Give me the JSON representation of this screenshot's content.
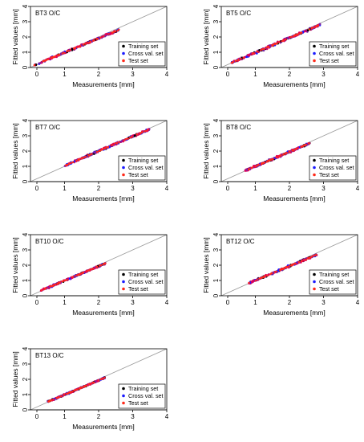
{
  "colors": {
    "training": "#000000",
    "cross_val": "#1a1aff",
    "test": "#ff2a1a",
    "dots_red": "#e0005a",
    "dots_purple": "#7a1fa2",
    "diagonal": "#9a9a9a",
    "axis": "#000000"
  },
  "chart_data": [
    {
      "type": "scatter",
      "title": "BT3 O/C",
      "xlabel": "Measurements [mm]",
      "ylabel": "Fitted values [mm]",
      "xlim": [
        0,
        4
      ],
      "ylim": [
        0,
        4
      ],
      "xticks": [
        "0",
        "1",
        "2",
        "3",
        "4"
      ],
      "yticks": [
        "0",
        "1",
        "2",
        "3",
        "4"
      ],
      "reference_line": "y = x",
      "legend": [
        "Training set",
        "Cross val. set",
        "Test set"
      ],
      "legend_position": "bottom-right",
      "data_range": [
        0.1,
        2.6
      ],
      "slope": 0.93,
      "intercept": 0.05,
      "spread": 0.1
    },
    {
      "type": "scatter",
      "title": "BT5 O/C",
      "xlabel": "Measurements [mm]",
      "ylabel": "Fitted values [mm]",
      "xlim": [
        0,
        4
      ],
      "ylim": [
        0,
        4
      ],
      "xticks": [
        "0",
        "1",
        "2",
        "3",
        "4"
      ],
      "yticks": [
        "0",
        "1",
        "2",
        "3",
        "4"
      ],
      "reference_line": "y = x",
      "legend": [
        "Training set",
        "Cross val. set",
        "Test set"
      ],
      "legend_position": "bottom-right",
      "data_range": [
        0.3,
        2.9
      ],
      "slope": 0.96,
      "intercept": 0.02,
      "spread": 0.11
    },
    {
      "type": "scatter",
      "title": "BT7 O/C",
      "xlabel": "Measurements [mm]",
      "ylabel": "Fitted values [mm]",
      "xlim": [
        0,
        4
      ],
      "ylim": [
        0,
        4
      ],
      "xticks": [
        "0",
        "1",
        "2",
        "3",
        "4"
      ],
      "yticks": [
        "0",
        "1",
        "2",
        "3",
        "4"
      ],
      "reference_line": "y = x",
      "legend": [
        "Training set",
        "Cross val. set",
        "Test set"
      ],
      "legend_position": "bottom-right",
      "data_range": [
        1.0,
        3.5
      ],
      "slope": 0.96,
      "intercept": 0.08,
      "spread": 0.1
    },
    {
      "type": "scatter",
      "title": "BT8 O/C",
      "xlabel": "Measurements [mm]",
      "ylabel": "Fitted values [mm]",
      "xlim": [
        0,
        4
      ],
      "ylim": [
        0,
        4
      ],
      "xticks": [
        "0",
        "1",
        "2",
        "3",
        "4"
      ],
      "yticks": [
        "0",
        "1",
        "2",
        "3",
        "4"
      ],
      "reference_line": "y = x",
      "legend": [
        "Training set",
        "Cross val. set",
        "Test set"
      ],
      "legend_position": "bottom-right",
      "data_range": [
        0.7,
        2.6
      ],
      "slope": 0.95,
      "intercept": 0.05,
      "spread": 0.09
    },
    {
      "type": "scatter",
      "title": "BT10 O/C",
      "xlabel": "Measurements [mm]",
      "ylabel": "Fitted values [mm]",
      "xlim": [
        0,
        4
      ],
      "ylim": [
        0,
        4
      ],
      "xticks": [
        "0",
        "1",
        "2",
        "3",
        "4"
      ],
      "yticks": [
        "0",
        "1",
        "2",
        "3",
        "4"
      ],
      "reference_line": "y = x",
      "legend": [
        "Training set",
        "Cross val. set",
        "Test set"
      ],
      "legend_position": "bottom-right",
      "data_range": [
        0.3,
        2.2
      ],
      "slope": 0.94,
      "intercept": 0.05,
      "spread": 0.08
    },
    {
      "type": "scatter",
      "title": "BT12 O/C",
      "xlabel": "Measurements [mm]",
      "ylabel": "Fitted values [mm]",
      "xlim": [
        0,
        4
      ],
      "ylim": [
        0,
        4
      ],
      "xticks": [
        "0",
        "1",
        "2",
        "3",
        "4"
      ],
      "yticks": [
        "0",
        "1",
        "2",
        "3",
        "4"
      ],
      "reference_line": "y = x",
      "legend": [
        "Training set",
        "Cross val. set",
        "Test set"
      ],
      "legend_position": "bottom-right",
      "data_range": [
        0.8,
        2.8
      ],
      "slope": 0.93,
      "intercept": 0.08,
      "spread": 0.1
    },
    {
      "type": "scatter",
      "title": "BT13 O/C",
      "xlabel": "Measurements [mm]",
      "ylabel": "Fitted values [mm]",
      "xlim": [
        0,
        4
      ],
      "ylim": [
        0,
        4
      ],
      "xticks": [
        "0",
        "1",
        "2",
        "3",
        "4"
      ],
      "yticks": [
        "0",
        "1",
        "2",
        "3",
        "4"
      ],
      "reference_line": "y = x",
      "legend": [
        "Training set",
        "Cross val. set",
        "Test set"
      ],
      "legend_position": "bottom-right",
      "data_range": [
        0.5,
        2.2
      ],
      "slope": 0.94,
      "intercept": 0.05,
      "spread": 0.07
    }
  ]
}
